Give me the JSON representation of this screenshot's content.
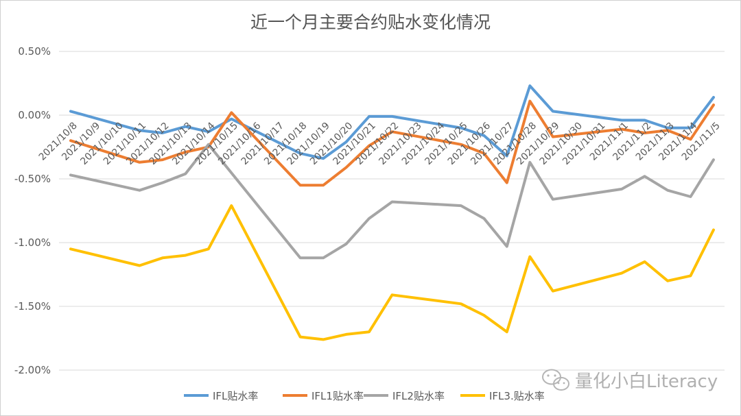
{
  "chart_data": {
    "type": "line",
    "title": "近一个月主要合约贴水变化情况",
    "xlabel": "",
    "ylabel": "",
    "ylim": [
      -2.0,
      0.5
    ],
    "yticks": [
      0.5,
      0.0,
      -0.5,
      -1.0,
      -1.5,
      -2.0
    ],
    "ytick_labels": [
      "0.50%",
      "0.00%",
      "-0.50%",
      "-1.00%",
      "-1.50%",
      "-2.00%"
    ],
    "grid": true,
    "legend_position": "bottom",
    "x": [
      "2021/10/8",
      "2021/10/9",
      "2021/10/10",
      "2021/10/11",
      "2021/10/12",
      "2021/10/13",
      "2021/10/14",
      "2021/10/15",
      "2021/10/16",
      "2021/10/17",
      "2021/10/18",
      "2021/10/19",
      "2021/10/20",
      "2021/10/21",
      "2021/10/22",
      "2021/10/23",
      "2021/10/24",
      "2021/10/25",
      "2021/10/26",
      "2021/10/27",
      "2021/10/28",
      "2021/10/29",
      "2021/10/30",
      "2021/10/31",
      "2021/11/1",
      "2021/11/2",
      "2021/11/3",
      "2021/11/4",
      "2021/11/5"
    ],
    "series": [
      {
        "name": "IFL贴水率",
        "color": "#5b9bd5",
        "values": [
          0.03,
          null,
          null,
          -0.12,
          -0.14,
          -0.09,
          -0.13,
          -0.03,
          null,
          null,
          -0.3,
          -0.34,
          -0.21,
          -0.01,
          -0.01,
          null,
          null,
          -0.1,
          -0.16,
          -0.32,
          0.23,
          0.03,
          null,
          null,
          -0.04,
          -0.04,
          -0.1,
          -0.1,
          0.14
        ]
      },
      {
        "name": "IFL1贴水率",
        "color": "#ed7d31",
        "values": [
          -0.2,
          null,
          null,
          -0.37,
          -0.35,
          -0.29,
          -0.25,
          0.02,
          null,
          null,
          -0.55,
          -0.55,
          -0.41,
          -0.24,
          -0.13,
          null,
          null,
          -0.23,
          -0.3,
          -0.53,
          0.11,
          -0.17,
          null,
          null,
          -0.11,
          -0.14,
          -0.12,
          -0.19,
          0.08
        ]
      },
      {
        "name": "IFL2贴水率",
        "color": "#a5a5a5",
        "values": [
          -0.47,
          null,
          null,
          -0.59,
          -0.53,
          -0.46,
          -0.23,
          null,
          null,
          null,
          -1.12,
          -1.12,
          -1.01,
          -0.81,
          -0.68,
          null,
          null,
          -0.71,
          -0.81,
          -1.03,
          -0.37,
          -0.66,
          null,
          null,
          -0.58,
          -0.48,
          -0.59,
          -0.64,
          -0.35
        ]
      },
      {
        "name": "IFL3.贴水率",
        "color": "#ffc000",
        "values": [
          -1.05,
          null,
          null,
          -1.18,
          -1.12,
          -1.1,
          -1.05,
          -0.71,
          null,
          null,
          -1.74,
          -1.76,
          -1.72,
          -1.7,
          -1.41,
          null,
          null,
          -1.48,
          -1.57,
          -1.7,
          -1.11,
          -1.38,
          null,
          null,
          -1.24,
          -1.15,
          -1.3,
          -1.26,
          -0.9
        ]
      }
    ]
  },
  "watermark": {
    "icon": "wechat-icon",
    "text": "量化小白Literacy"
  }
}
